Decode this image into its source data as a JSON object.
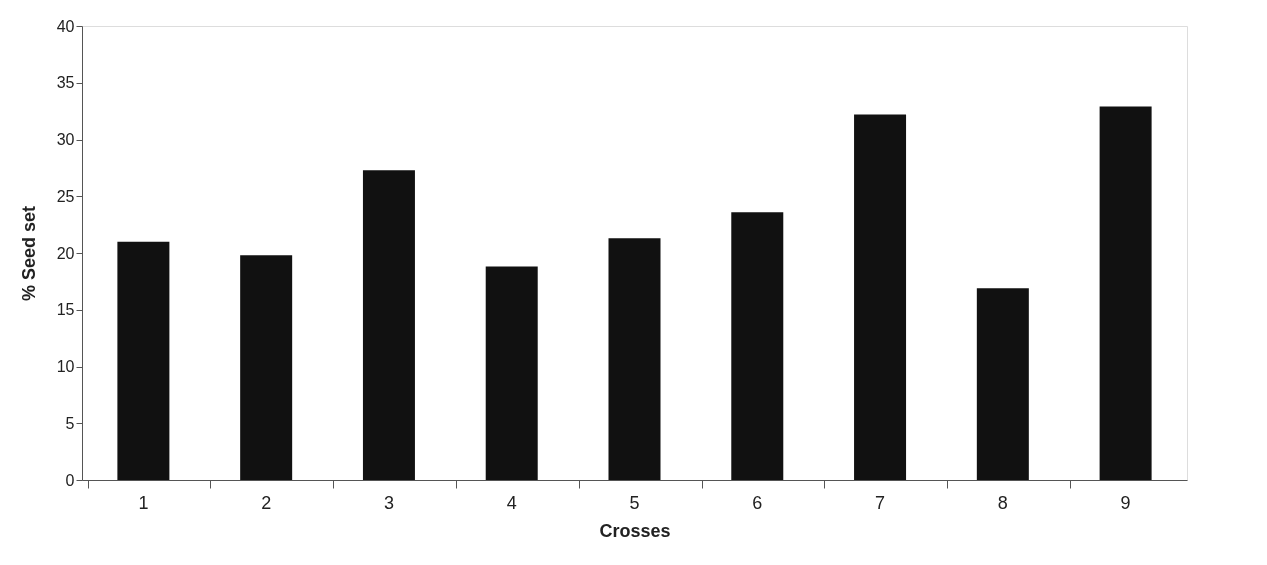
{
  "chart_data": {
    "type": "bar",
    "xlabel": "Crosses",
    "ylabel": "% Seed set",
    "categories": [
      "1",
      "2",
      "3",
      "4",
      "5",
      "6",
      "7",
      "8",
      "9"
    ],
    "series": [
      {
        "color": "#111111",
        "values": [
          21.0,
          19.8,
          27.3,
          18.8,
          21.3,
          23.6,
          32.2,
          16.9,
          32.9
        ]
      }
    ],
    "ylim": [
      0,
      40
    ],
    "yticks": [
      0,
      5,
      10,
      15,
      20,
      25,
      30,
      35,
      40
    ],
    "grid": false,
    "legend": false
  }
}
